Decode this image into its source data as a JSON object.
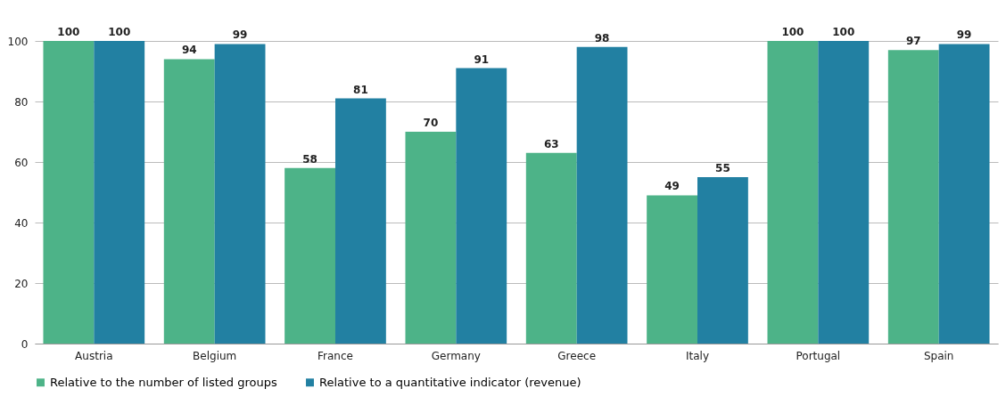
{
  "chart_data": {
    "type": "bar",
    "categories": [
      "Austria",
      "Belgium",
      "France",
      "Germany",
      "Greece",
      "Italy",
      "Portugal",
      "Spain"
    ],
    "series": [
      {
        "name": "Relative to the number of listed groups",
        "color": "#4db388",
        "values": [
          100,
          94,
          58,
          70,
          63,
          49,
          100,
          97
        ]
      },
      {
        "name": "Relative to a quantitative indicator (revenue)",
        "color": "#2280a2",
        "values": [
          100,
          99,
          81,
          91,
          98,
          55,
          100,
          99
        ]
      }
    ],
    "ylim": [
      0,
      100
    ],
    "yticks": [
      0,
      20,
      40,
      60,
      80,
      100
    ],
    "grid": "y",
    "legend": "bottom",
    "data_labels": true
  }
}
